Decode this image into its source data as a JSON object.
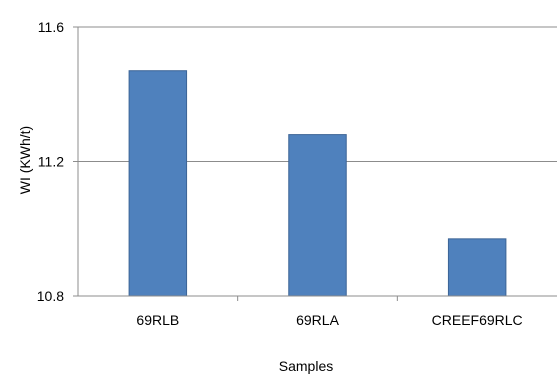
{
  "chart_data": {
    "type": "bar",
    "categories": [
      "69RLB",
      "69RLA",
      "CREEF69RLC"
    ],
    "values": [
      11.47,
      11.28,
      10.97
    ],
    "xlabel": "Samples",
    "ylabel": "WI (KWh/t)",
    "ylim": [
      10.8,
      11.6
    ],
    "yticks": [
      "10.8",
      "11.2",
      "11.6"
    ],
    "grid": true,
    "legend": "none",
    "colors": {
      "bar": "#4f81bd",
      "bar_edge": "#3c6496",
      "grid": "#8c8c8c",
      "axis": "#8c8c8c"
    }
  }
}
